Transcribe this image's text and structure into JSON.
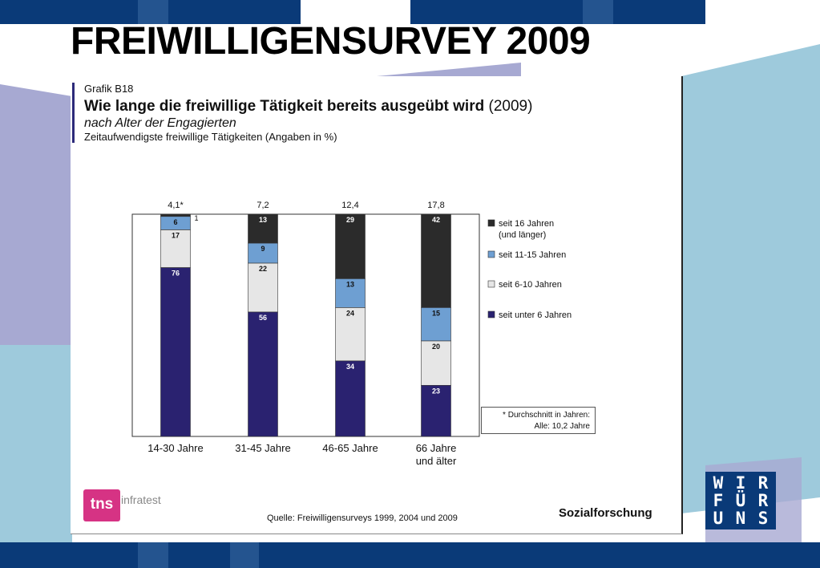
{
  "slide": {
    "title": "FREIWILLIGENSURVEY 2009"
  },
  "panel": {
    "label": "Grafik B18",
    "heading": "Wie lange die freiwillige Tätigkeit bereits ausgeübt wird",
    "heading_year": "(2009)",
    "subtitle": "nach Alter der Engagierten",
    "description": "Zeitaufwendigste freiwillige Tätigkeiten (Angaben in %)",
    "note_line1": "* Durchschnitt in Jahren:",
    "note_line2": "Alle: 10,2 Jahre",
    "source": "Quelle: Freiwilligensurveys 1999, 2004 und 2009",
    "brand": "Sozialforschung",
    "logo_mark": "tns",
    "logo_word": "infratest"
  },
  "badge": {
    "rows": [
      [
        "W",
        "I",
        "R"
      ],
      [
        "F",
        "Ü",
        "R"
      ],
      [
        "U",
        "N",
        "S"
      ]
    ]
  },
  "colors": {
    "dark_blue": "#0a3a78",
    "light_blue": "#9ecadc",
    "lavender": "#a7a9d2",
    "badge_bg": "#0a3a78"
  },
  "chart_data": {
    "type": "bar",
    "stacked": true,
    "categories": [
      [
        "14-30 Jahre"
      ],
      [
        "31-45 Jahre"
      ],
      [
        "46-65 Jahre"
      ],
      [
        "66 Jahre",
        "und älter"
      ]
    ],
    "top_labels": [
      "4,1*",
      "7,2",
      "12,4",
      "17,8"
    ],
    "ylim": [
      0,
      100
    ],
    "series": [
      {
        "name": "seit unter 6 Jahren",
        "color": "#2a2270",
        "values": [
          76,
          56,
          34,
          23
        ],
        "labels": [
          "76",
          "56",
          "34",
          "23"
        ]
      },
      {
        "name": "seit 6-10 Jahren",
        "color": "#e6e6e6",
        "values": [
          17,
          22,
          24,
          20
        ],
        "labels": [
          "17",
          "22",
          "24",
          "20"
        ]
      },
      {
        "name": "seit 11-15 Jahren",
        "color": "#6e9fd2",
        "values": [
          6,
          9,
          13,
          15
        ],
        "labels": [
          "6",
          "9",
          "13",
          "15"
        ]
      },
      {
        "name": "seit 16 Jahren\n(und länger)",
        "color": "#2b2b2b",
        "values": [
          1,
          13,
          29,
          42
        ],
        "labels": [
          "1",
          "13",
          "29",
          "42"
        ]
      }
    ],
    "legend_position": "right"
  }
}
